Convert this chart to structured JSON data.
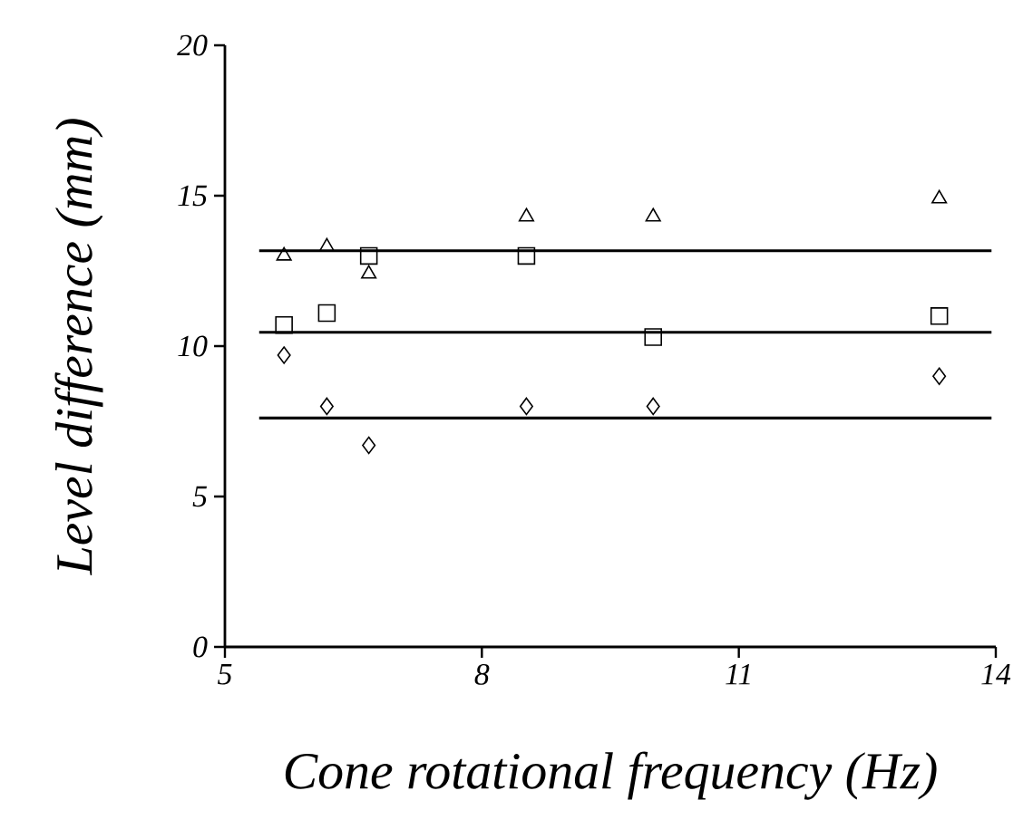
{
  "chart_data": {
    "type": "scatter",
    "xlabel": "Cone rotational frequency (Hz)",
    "ylabel": "Level difference (mm)",
    "xlim": [
      5,
      14
    ],
    "xticks": [
      5,
      8,
      11,
      14
    ],
    "ylim": [
      0,
      20
    ],
    "yticks": [
      0,
      5,
      10,
      15,
      20
    ],
    "series": [
      {
        "marker": "triangle",
        "color": "#000000",
        "x": [
          5.69,
          6.19,
          6.68,
          8.52,
          10.0,
          13.34
        ],
        "values": [
          13.0,
          13.3,
          12.4,
          14.3,
          14.3,
          14.9
        ]
      },
      {
        "marker": "square",
        "color": "#000000",
        "x": [
          5.69,
          6.19,
          6.68,
          8.52,
          10.0,
          13.34
        ],
        "values": [
          10.7,
          11.1,
          13.0,
          13.0,
          10.3,
          11.0
        ]
      },
      {
        "marker": "diamond",
        "color": "#000000",
        "x": [
          5.69,
          6.19,
          6.68,
          8.52,
          10.0,
          13.34
        ],
        "values": [
          9.7,
          8.0,
          6.7,
          8.0,
          8.0,
          9.0
        ]
      },
      {
        "type": "line",
        "marker": "none",
        "line_style": "solid",
        "color": "#000000",
        "x": [
          5.4,
          13.95
        ],
        "values": [
          13.17,
          13.17
        ]
      },
      {
        "type": "line",
        "marker": "none",
        "line_style": "solid",
        "color": "#000000",
        "x": [
          5.4,
          13.95
        ],
        "values": [
          10.46,
          10.46
        ]
      },
      {
        "type": "line",
        "marker": "none",
        "line_style": "solid",
        "color": "#000000",
        "x": [
          5.4,
          13.95
        ],
        "values": [
          7.61,
          7.61
        ]
      }
    ]
  }
}
